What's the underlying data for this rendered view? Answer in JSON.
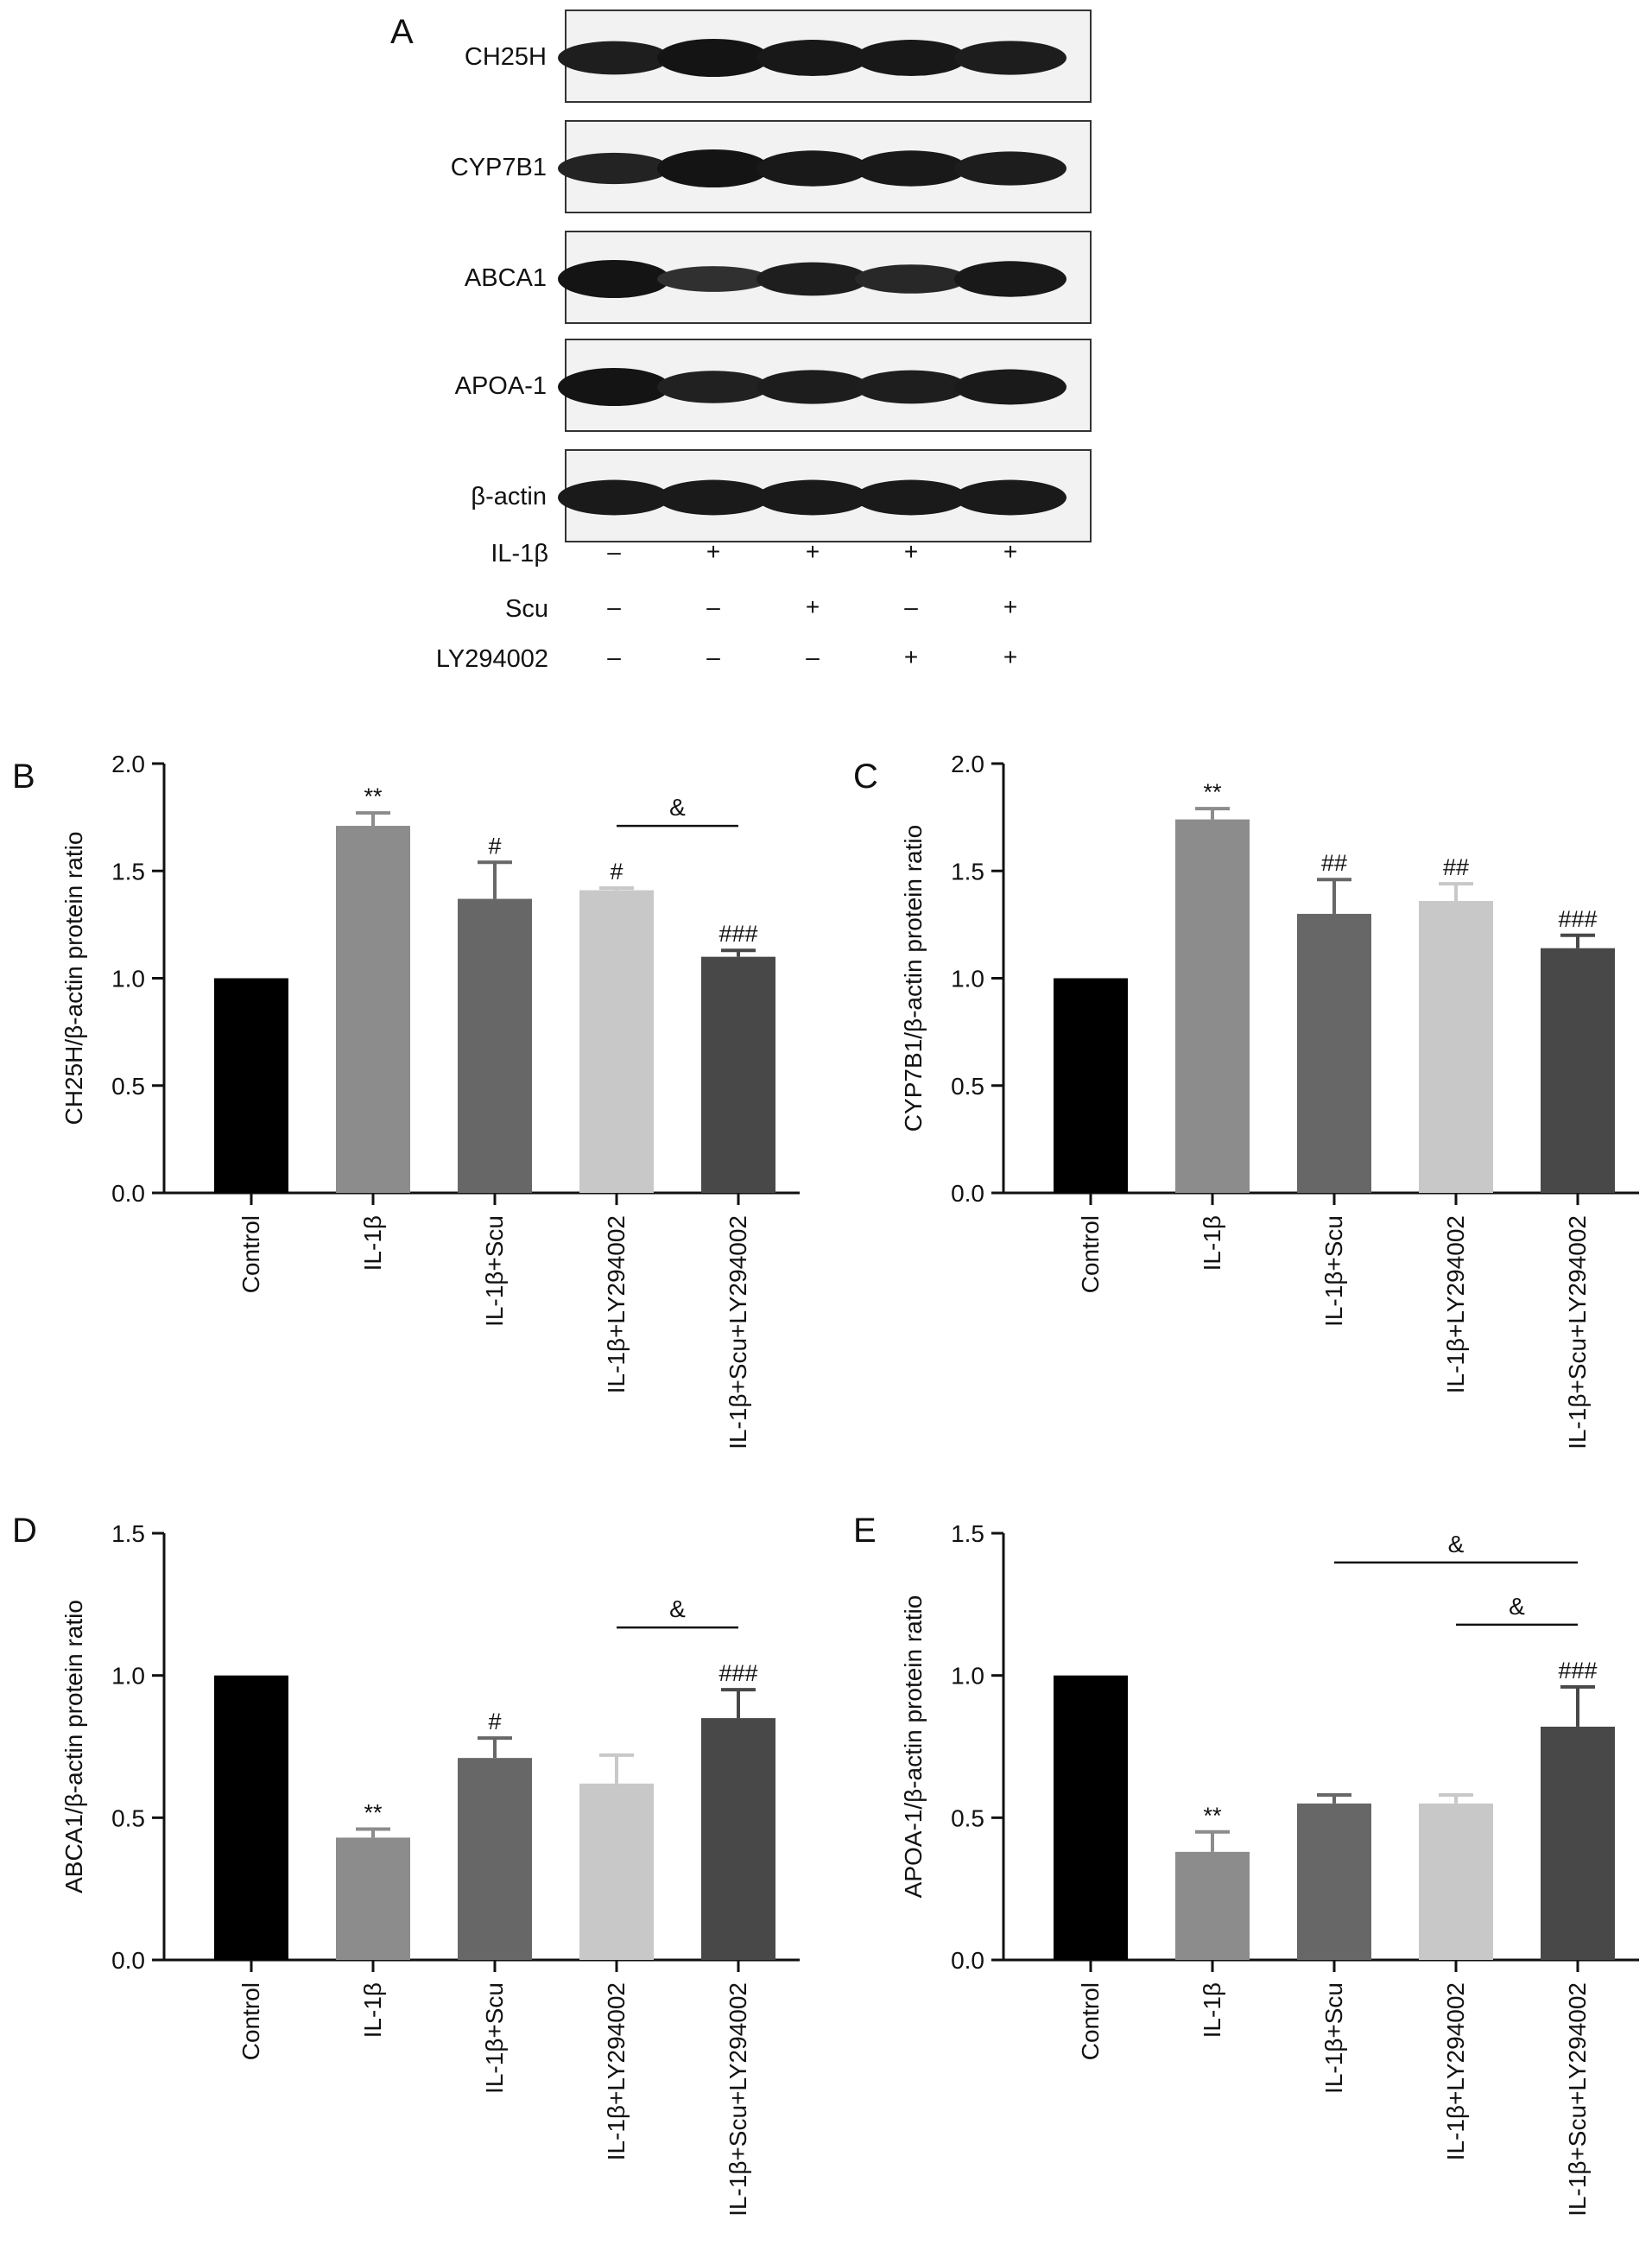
{
  "panel_letters": [
    "A",
    "B",
    "C",
    "D",
    "E"
  ],
  "western_blot": {
    "bands": [
      "CH25H",
      "CYP7B1",
      "ABCA1",
      "APOA-1",
      "β-actin"
    ],
    "band_intensity": [
      [
        0.8,
        1.0,
        0.92,
        0.92,
        0.82
      ],
      [
        0.7,
        1.0,
        0.9,
        0.9,
        0.82
      ],
      [
        1.0,
        0.45,
        0.8,
        0.6,
        0.9
      ],
      [
        1.0,
        0.75,
        0.82,
        0.8,
        0.88
      ],
      [
        0.88,
        0.88,
        0.88,
        0.88,
        0.88
      ]
    ],
    "treatments": [
      {
        "name": "IL-1β",
        "signs": [
          "–",
          "+",
          "+",
          "+",
          "+"
        ]
      },
      {
        "name": "Scu",
        "signs": [
          "–",
          "–",
          "+",
          "–",
          "+"
        ]
      },
      {
        "name": "LY294002",
        "signs": [
          "–",
          "–",
          "–",
          "+",
          "+"
        ]
      }
    ]
  },
  "chart_data": [
    {
      "panel": "B",
      "type": "bar",
      "categories": [
        "Control",
        "IL-1β",
        "IL-1β+Scu",
        "IL-1β+LY294002",
        "IL-1β+Scu+LY294002"
      ],
      "values": [
        1.0,
        1.71,
        1.37,
        1.41,
        1.1
      ],
      "errors": [
        0,
        0.06,
        0.17,
        0.01,
        0.03
      ],
      "annotations": [
        "",
        "**",
        "#",
        "#",
        "###"
      ],
      "brackets": [
        {
          "from": 3,
          "to": 4,
          "label": "&"
        }
      ],
      "ylabel": "CH25H/β-actin protein ratio",
      "ylim": [
        0,
        2.0
      ],
      "yticks": [
        0.0,
        0.5,
        1.0,
        1.5,
        2.0
      ],
      "colors": [
        "#000000",
        "#8c8c8c",
        "#676767",
        "#c8c8c8",
        "#484848"
      ]
    },
    {
      "panel": "C",
      "type": "bar",
      "categories": [
        "Control",
        "IL-1β",
        "IL-1β+Scu",
        "IL-1β+LY294002",
        "IL-1β+Scu+LY294002"
      ],
      "values": [
        1.0,
        1.74,
        1.3,
        1.36,
        1.14
      ],
      "errors": [
        0,
        0.05,
        0.16,
        0.08,
        0.06
      ],
      "annotations": [
        "",
        "**",
        "##",
        "##",
        "###"
      ],
      "brackets": [],
      "ylabel": "CYP7B1/β-actin protein ratio",
      "ylim": [
        0,
        2.0
      ],
      "yticks": [
        0.0,
        0.5,
        1.0,
        1.5,
        2.0
      ],
      "colors": [
        "#000000",
        "#8c8c8c",
        "#676767",
        "#c8c8c8",
        "#484848"
      ]
    },
    {
      "panel": "D",
      "type": "bar",
      "categories": [
        "Control",
        "IL-1β",
        "IL-1β+Scu",
        "IL-1β+LY294002",
        "IL-1β+Scu+LY294002"
      ],
      "values": [
        1.0,
        0.43,
        0.71,
        0.62,
        0.85
      ],
      "errors": [
        0,
        0.03,
        0.07,
        0.1,
        0.1
      ],
      "annotations": [
        "",
        "**",
        "#",
        "",
        "###"
      ],
      "brackets": [
        {
          "from": 3,
          "to": 4,
          "label": "&"
        }
      ],
      "ylabel": "ABCA1/β-actin protein ratio",
      "ylim": [
        0,
        1.5
      ],
      "yticks": [
        0.0,
        0.5,
        1.0,
        1.5
      ],
      "colors": [
        "#000000",
        "#8c8c8c",
        "#676767",
        "#c8c8c8",
        "#484848"
      ]
    },
    {
      "panel": "E",
      "type": "bar",
      "categories": [
        "Control",
        "IL-1β",
        "IL-1β+Scu",
        "IL-1β+LY294002",
        "IL-1β+Scu+LY294002"
      ],
      "values": [
        1.0,
        0.38,
        0.55,
        0.55,
        0.82
      ],
      "errors": [
        0,
        0.07,
        0.03,
        0.03,
        0.14
      ],
      "annotations": [
        "",
        "**",
        "",
        "",
        "###"
      ],
      "brackets": [
        {
          "from": 2,
          "to": 4,
          "label": "&"
        },
        {
          "from": 3,
          "to": 4,
          "label": "&"
        }
      ],
      "ylabel": "APOA-1/β-actin protein ratio",
      "ylim": [
        0,
        1.5
      ],
      "yticks": [
        0.0,
        0.5,
        1.0,
        1.5
      ],
      "colors": [
        "#000000",
        "#8c8c8c",
        "#676767",
        "#c8c8c8",
        "#484848"
      ]
    }
  ]
}
